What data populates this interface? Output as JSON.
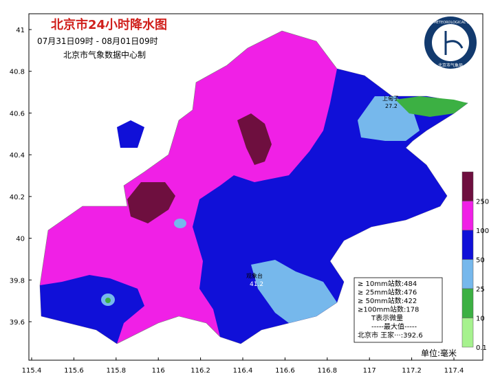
{
  "header": {
    "title": "北京市24小时降水图",
    "period": "07月31日09时 - 08月01日09时",
    "source": "北京市气象数据中心制"
  },
  "logo": {
    "ring": "BEIJING METEOROLOGICAL SERVICE",
    "name": "北京市气象局"
  },
  "axes": {
    "lon_ticks": [
      115.4,
      115.6,
      115.8,
      116,
      116.2,
      116.4,
      116.6,
      116.8,
      117,
      117.2,
      117.4
    ],
    "lat_ticks": [
      41,
      40.8,
      40.6,
      40.4,
      40.2,
      40,
      39.8,
      39.6
    ]
  },
  "legend": {
    "levels": [
      {
        "label": "250",
        "color": "#6e0f3f"
      },
      {
        "label": "100",
        "color": "#f020e6"
      },
      {
        "label": "50",
        "color": "#1010d8"
      },
      {
        "label": "25",
        "color": "#76b8ec"
      },
      {
        "label": "10",
        "color": "#3cb043"
      },
      {
        "label": "0.1",
        "color": "#a6f28e"
      }
    ],
    "unit": "单位:毫米"
  },
  "stats": {
    "lines": [
      "≥ 10mm站数:484",
      "≥ 25mm站数:476",
      "≥ 50mm站数:422",
      "≥100mm站数:178",
      "T表示微量",
      "-----最大值-----",
      "北京市 王家···:392.6"
    ]
  },
  "stations": [
    {
      "name": "上甸子",
      "value": "27.2"
    },
    {
      "name": "观象台",
      "value": "41.2"
    }
  ]
}
